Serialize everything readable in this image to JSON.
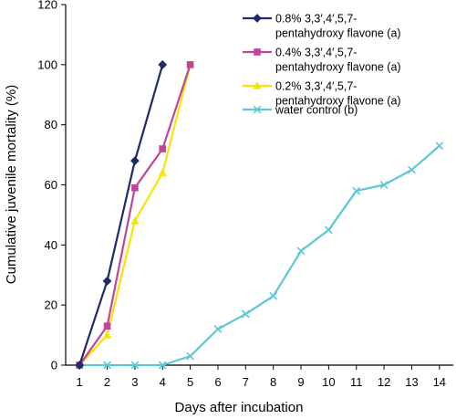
{
  "chart_data": {
    "type": "line",
    "xlabel": "Days after incubation",
    "ylabel": "Cumulative juvenile mortality (%)",
    "xlim": [
      0.5,
      14.5
    ],
    "ylim": [
      0,
      120
    ],
    "xticks": [
      1,
      2,
      3,
      4,
      5,
      6,
      7,
      8,
      9,
      10,
      11,
      12,
      13,
      14
    ],
    "yticks": [
      0,
      20,
      40,
      60,
      80,
      100,
      120
    ],
    "grid": false,
    "legend_position": "top-right",
    "series": [
      {
        "name": "0.8% 3,3′,4′,5,7-pentahydroxy flavone (a)",
        "legend_lines": [
          "0.8% 3,3′,4′,5,7-",
          "pentahydroxy flavone (a)"
        ],
        "color": "#1f2a6b",
        "marker": "diamond",
        "x": [
          1,
          2,
          3,
          4
        ],
        "y": [
          0,
          28,
          68,
          100
        ]
      },
      {
        "name": "0.4% 3,3′,4′,5,7-pentahydroxy flavone (a)",
        "legend_lines": [
          "0.4% 3,3′,4′,5,7-",
          "pentahydroxy flavone (a)"
        ],
        "color": "#c0449a",
        "marker": "square",
        "x": [
          1,
          2,
          3,
          4,
          5
        ],
        "y": [
          0,
          13,
          59,
          72,
          100
        ]
      },
      {
        "name": "0.2% 3,3′,4′,5,7-pentahydroxy flavone (a)",
        "legend_lines": [
          "0.2% 3,3′,4′,5,7-",
          "pentahydroxy flavone (a)"
        ],
        "color": "#f5e600",
        "marker": "triangle",
        "x": [
          1,
          2,
          3,
          4,
          5
        ],
        "y": [
          0,
          10,
          48,
          64,
          100
        ]
      },
      {
        "name": "water control (b)",
        "legend_lines": [
          "water control (b)"
        ],
        "color": "#5bc8d6",
        "marker": "x",
        "x": [
          1,
          2,
          3,
          4,
          5,
          6,
          7,
          8,
          9,
          10,
          11,
          12,
          13,
          14
        ],
        "y": [
          0,
          0,
          0,
          0,
          3,
          12,
          17,
          23,
          38,
          45,
          58,
          60,
          65,
          73
        ]
      }
    ]
  }
}
